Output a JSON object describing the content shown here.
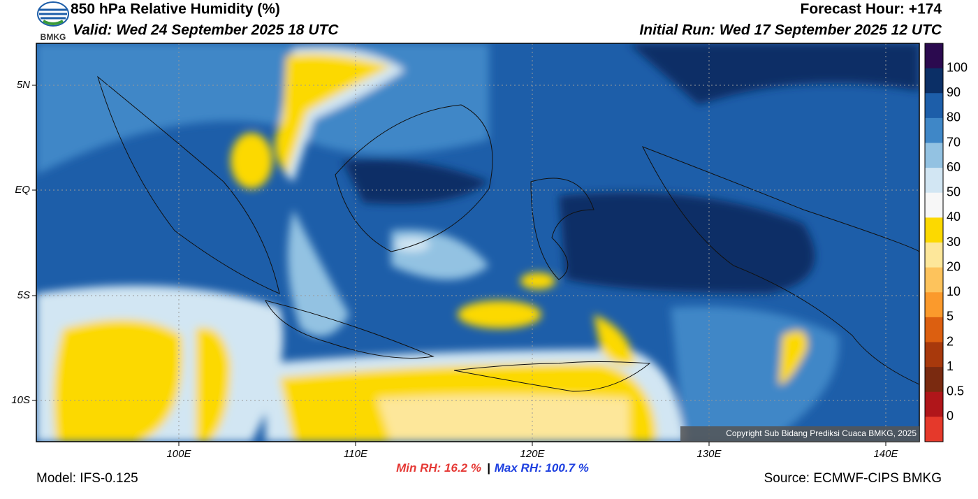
{
  "header": {
    "title": "850 hPa Relative Humidity (%)",
    "valid": "Valid: Wed 24 September 2025 18 UTC",
    "forecast_hour": "Forecast Hour: +174",
    "initial_run": "Initial Run: Wed 17 September 2025 12 UTC",
    "logo_text": "BMKG"
  },
  "map": {
    "lat_labels": [
      "5N",
      "EQ",
      "5S",
      "10S"
    ],
    "lon_labels": [
      "100E",
      "110E",
      "120E",
      "130E",
      "140E"
    ],
    "copyright": "Copyright Sub Bidang Prediksi Cuaca BMKG, 2025"
  },
  "colorbar": {
    "labels": [
      "100",
      "90",
      "80",
      "70",
      "60",
      "50",
      "40",
      "30",
      "20",
      "10",
      "5",
      "2",
      "1",
      "0.5",
      "0"
    ],
    "colors": [
      "#2b0a4f",
      "#0b2f66",
      "#1d5ea9",
      "#3f87c7",
      "#93c2e2",
      "#d2e6f3",
      "#f7f7f7",
      "#fcd900",
      "#fde79a",
      "#fdc35c",
      "#fb9a2c",
      "#dc5f10",
      "#a8390c",
      "#7a2a10",
      "#b0161a",
      "#e5392b"
    ]
  },
  "stats": {
    "min_label": "Min RH:  16.2 %",
    "separator": "|",
    "max_label": "Max RH: 100.7 %"
  },
  "footer": {
    "model": "Model: IFS-0.125",
    "source": "Source: ECMWF-CIPS BMKG"
  }
}
